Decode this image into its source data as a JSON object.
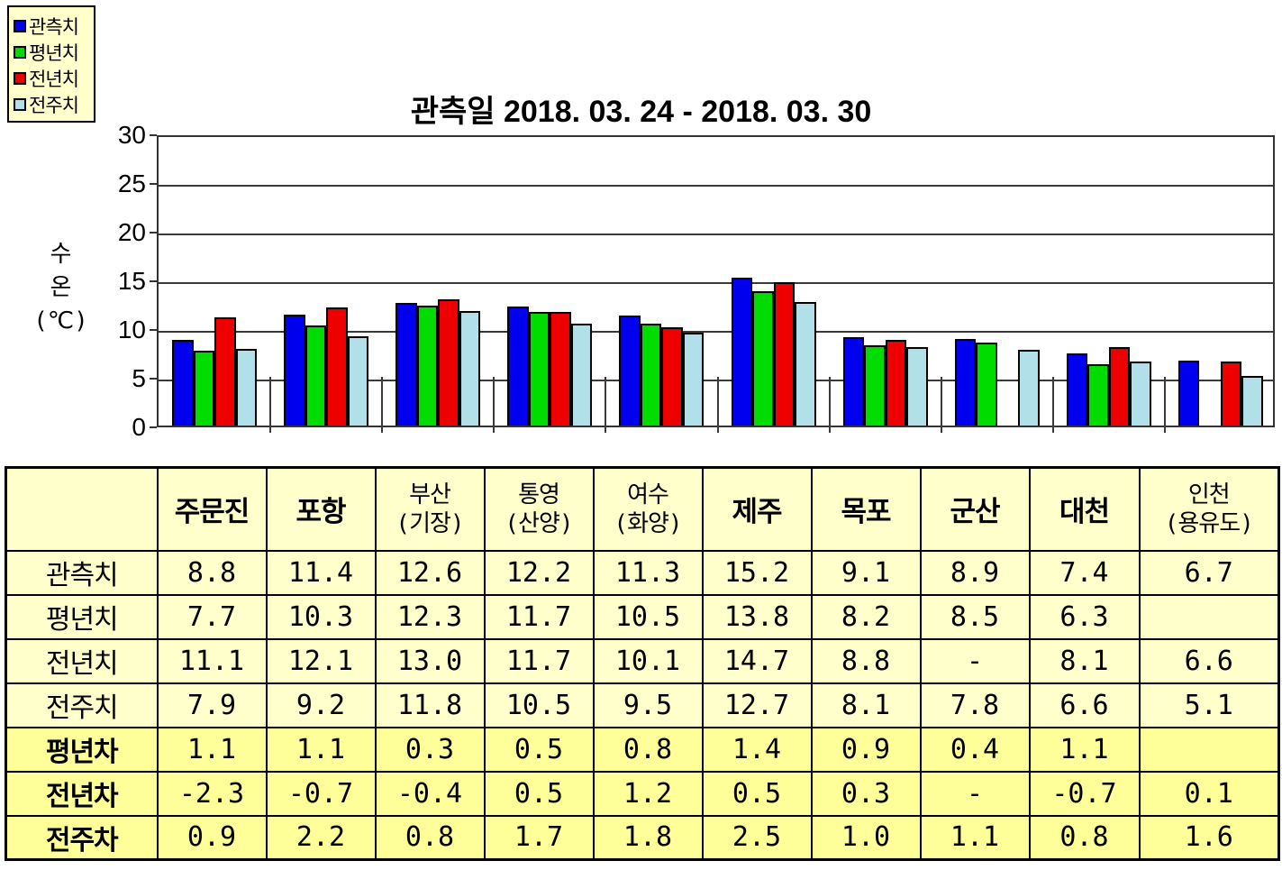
{
  "title": "관측일 2018. 03. 24 - 2018. 03. 30",
  "legend": {
    "items": [
      {
        "label": "관측치",
        "color": "#0000EE"
      },
      {
        "label": "평년치",
        "color": "#00DC00"
      },
      {
        "label": "전년치",
        "color": "#EE0000"
      },
      {
        "label": "전주치",
        "color": "#B2E0E8"
      }
    ]
  },
  "y_axis": {
    "title_lines": [
      "수",
      "온",
      "(℃)"
    ],
    "ticks": [
      30,
      25,
      20,
      15,
      10,
      5,
      0
    ]
  },
  "chart_data": {
    "type": "bar",
    "title": "관측일 2018. 03. 24 - 2018. 03. 30",
    "xlabel": "",
    "ylabel": "수온(℃)",
    "ylim": [
      0,
      30
    ],
    "ytick_step": 5,
    "grid": true,
    "legend_position": "top-left",
    "categories": [
      "주문진",
      "포항",
      "부산(기장)",
      "통영(산양)",
      "여수(화양)",
      "제주",
      "목포",
      "군산",
      "대천",
      "인천(용유도)"
    ],
    "series": [
      {
        "name": "관측치",
        "color": "#0000EE",
        "values": [
          8.8,
          11.4,
          12.6,
          12.2,
          11.3,
          15.2,
          9.1,
          8.9,
          7.4,
          6.7
        ]
      },
      {
        "name": "평년치",
        "color": "#00DC00",
        "values": [
          7.7,
          10.3,
          12.3,
          11.7,
          10.5,
          13.8,
          8.2,
          8.5,
          6.3,
          null
        ]
      },
      {
        "name": "전년치",
        "color": "#EE0000",
        "values": [
          11.1,
          12.1,
          13.0,
          11.7,
          10.1,
          14.7,
          8.8,
          null,
          8.1,
          6.6
        ]
      },
      {
        "name": "전주치",
        "color": "#B2E0E8",
        "values": [
          7.9,
          9.2,
          11.8,
          10.5,
          9.5,
          12.7,
          8.1,
          7.8,
          6.6,
          5.1
        ]
      }
    ]
  },
  "table": {
    "col_headers": [
      "",
      "주문진",
      "포항",
      "부산\n(기장)",
      "통영\n(산양)",
      "여수\n(화양)",
      "제주",
      "목포",
      "군산",
      "대천",
      "인천\n(용유도)"
    ],
    "rows": [
      {
        "label": "관측치",
        "diff": false,
        "values": [
          "8.8",
          "11.4",
          "12.6",
          "12.2",
          "11.3",
          "15.2",
          "9.1",
          "8.9",
          "7.4",
          "6.7"
        ]
      },
      {
        "label": "평년치",
        "diff": false,
        "values": [
          "7.7",
          "10.3",
          "12.3",
          "11.7",
          "10.5",
          "13.8",
          "8.2",
          "8.5",
          "6.3",
          ""
        ]
      },
      {
        "label": "전년치",
        "diff": false,
        "values": [
          "11.1",
          "12.1",
          "13.0",
          "11.7",
          "10.1",
          "14.7",
          "8.8",
          "-",
          "8.1",
          "6.6"
        ]
      },
      {
        "label": "전주치",
        "diff": false,
        "values": [
          "7.9",
          "9.2",
          "11.8",
          "10.5",
          "9.5",
          "12.7",
          "8.1",
          "7.8",
          "6.6",
          "5.1"
        ]
      },
      {
        "label": "평년차",
        "diff": true,
        "values": [
          "1.1",
          "1.1",
          "0.3",
          "0.5",
          "0.8",
          "1.4",
          "0.9",
          "0.4",
          "1.1",
          ""
        ]
      },
      {
        "label": "전년차",
        "diff": true,
        "values": [
          "-2.3",
          "-0.7",
          "-0.4",
          "0.5",
          "1.2",
          "0.5",
          "0.3",
          "-",
          "-0.7",
          "0.1"
        ]
      },
      {
        "label": "전주차",
        "diff": true,
        "values": [
          "0.9",
          "2.2",
          "0.8",
          "1.7",
          "1.8",
          "2.5",
          "1.0",
          "1.1",
          "0.8",
          "1.6"
        ]
      }
    ]
  },
  "colors": {
    "page_bg": "#FFFFFF",
    "panel_bg": "#FFFFCC",
    "diff_row_bg": "#FFFF99",
    "grid_line": "#333333",
    "bar_border": "#000000",
    "table_border": "#000000",
    "text": "#000000"
  }
}
